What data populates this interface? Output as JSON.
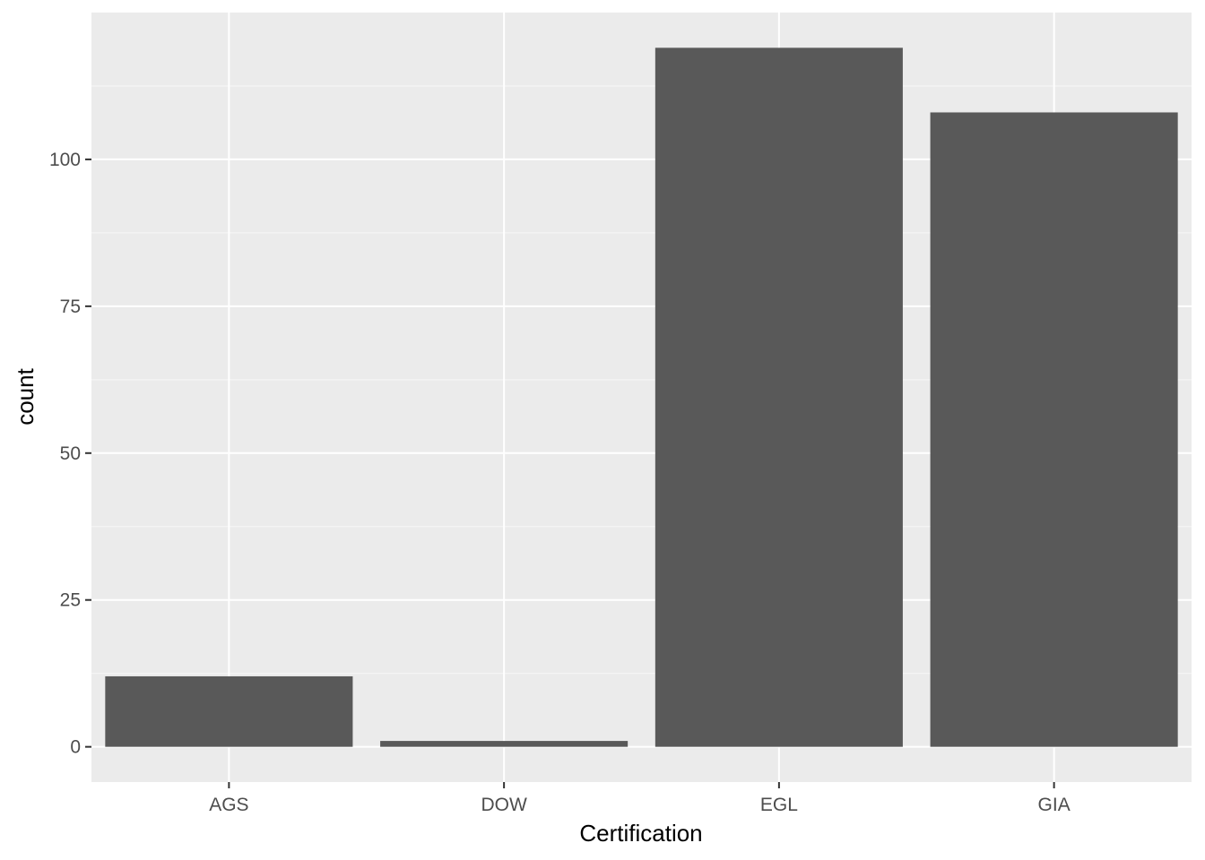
{
  "chart_data": {
    "type": "bar",
    "categories": [
      "AGS",
      "DOW",
      "EGL",
      "GIA"
    ],
    "values": [
      12,
      1,
      119,
      108
    ],
    "xlabel": "Certification",
    "ylabel": "count",
    "ylim": [
      -6,
      125
    ],
    "yticks": [
      0,
      25,
      50,
      75,
      100
    ],
    "grid": true,
    "legend": "none",
    "colors": {
      "panel": "#ebebeb",
      "grid": "#ffffff",
      "bar": "#595959",
      "tick_text": "#4d4d4d",
      "title_text": "#000000"
    }
  }
}
